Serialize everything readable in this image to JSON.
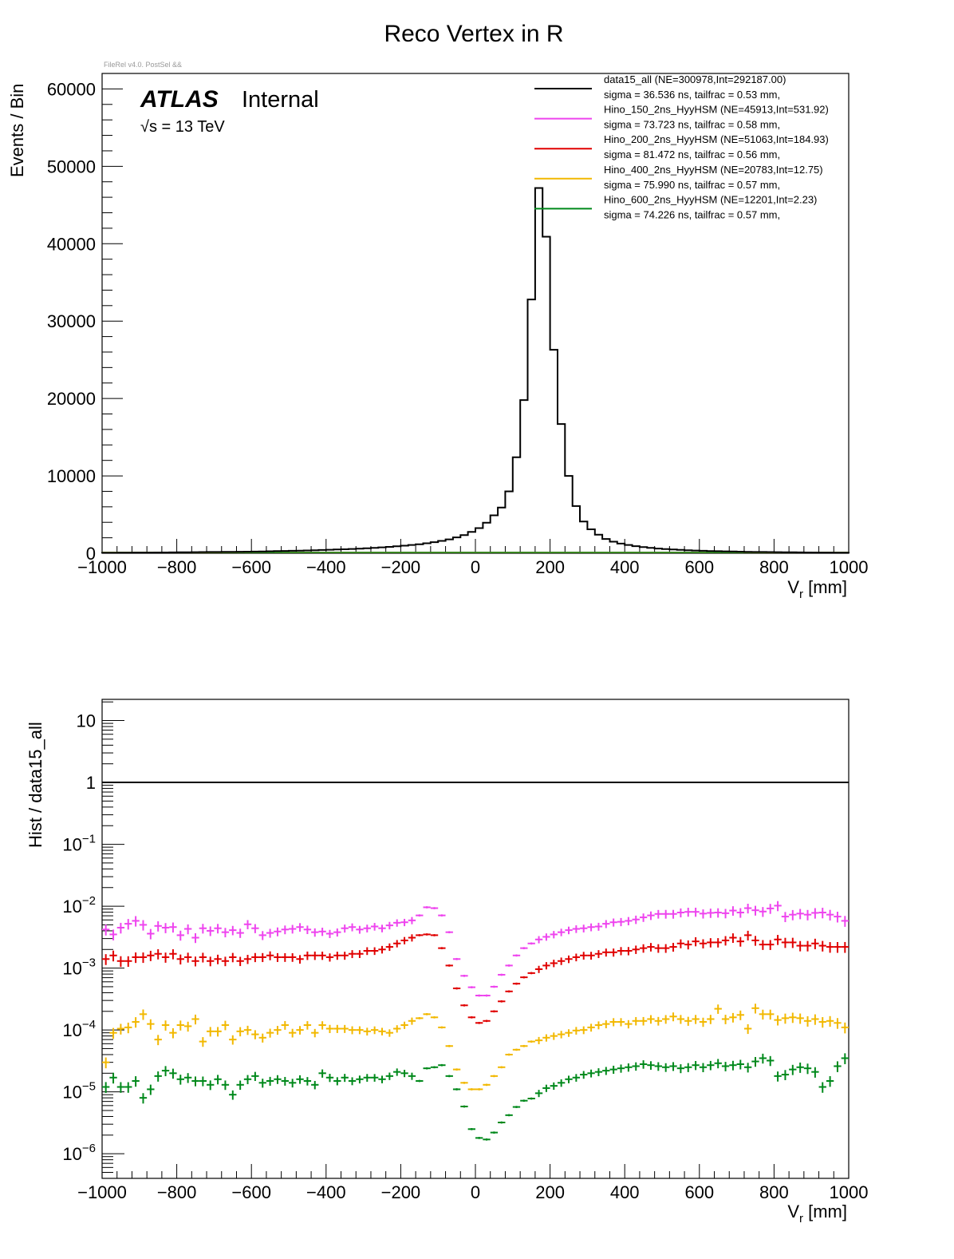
{
  "page": {
    "title": "Reco Vertex in R",
    "file_tag": "FileRel v4.0. PostSel &&",
    "atlas_label": "ATLAS",
    "atlas_status": "Internal",
    "energy_label": "√s = 13 TeV",
    "colors": {
      "data": "#000000",
      "h150": "#ee44ee",
      "h200": "#e00000",
      "h400": "#f2b800",
      "h600": "#00891b"
    }
  },
  "legend": [
    {
      "key": "data",
      "line1": "data15_all  (NE=300978,Int=292187.00)",
      "line2": "sigma = 36.536 ns, tailfrac = 0.53 mm,"
    },
    {
      "key": "h150",
      "line1": "Hino_150_2ns_HyyHSM  (NE=45913,Int=531.92)",
      "line2": "sigma = 73.723 ns, tailfrac = 0.58 mm,"
    },
    {
      "key": "h200",
      "line1": "Hino_200_2ns_HyyHSM  (NE=51063,Int=184.93)",
      "line2": "sigma = 81.472 ns, tailfrac = 0.56 mm,"
    },
    {
      "key": "h400",
      "line1": "Hino_400_2ns_HyyHSM  (NE=20783,Int=12.75)",
      "line2": "sigma = 75.990 ns, tailfrac = 0.57 mm,"
    },
    {
      "key": "h600",
      "line1": "Hino_600_2ns_HyyHSM  (NE=12201,Int=2.23)",
      "line2": "sigma = 74.226 ns, tailfrac = 0.57 mm,"
    }
  ],
  "chart_data": [
    {
      "type": "histogram",
      "title": "Reco Vertex in R",
      "xlabel": "V_r [mm]",
      "ylabel": "Events / Bin",
      "xlim": [
        -1000,
        1000
      ],
      "ylim": [
        0,
        62000
      ],
      "x_ticks": [
        -1000,
        -800,
        -600,
        -400,
        -200,
        0,
        200,
        400,
        600,
        800,
        1000
      ],
      "x_tick_labels": [
        "−1000",
        "−800",
        "−600",
        "−400",
        "−200",
        "0",
        "200",
        "400",
        "600",
        "800",
        "1000"
      ],
      "y_ticks": [
        0,
        10000,
        20000,
        30000,
        40000,
        50000,
        60000
      ],
      "y_tick_labels": [
        "0",
        "10000",
        "20000",
        "30000",
        "40000",
        "50000",
        "60000"
      ],
      "bin_width": 20,
      "series": [
        {
          "name": "data15_all",
          "values": [
            50,
            55,
            60,
            65,
            70,
            75,
            80,
            90,
            100,
            110,
            120,
            130,
            140,
            150,
            160,
            170,
            180,
            190,
            200,
            210,
            220,
            240,
            260,
            280,
            300,
            320,
            340,
            360,
            390,
            420,
            450,
            480,
            520,
            560,
            600,
            650,
            700,
            760,
            830,
            900,
            980,
            1070,
            1170,
            1290,
            1430,
            1600,
            1800,
            2050,
            2350,
            2750,
            3250,
            3950,
            4900,
            5900,
            8000,
            12400,
            19800,
            32800,
            47200,
            40900,
            26300,
            16700,
            10000,
            6100,
            4100,
            3100,
            2400,
            1850,
            1500,
            1250,
            1070,
            920,
            800,
            700,
            610,
            540,
            480,
            430,
            390,
            350,
            320,
            290,
            270,
            250,
            230,
            210,
            190,
            170,
            160,
            150,
            140,
            130,
            120,
            110,
            100,
            90,
            80,
            70,
            65,
            60
          ]
        },
        {
          "name": "Hino_150_2ns_HyyHSM",
          "total": 531.92
        },
        {
          "name": "Hino_200_2ns_HyyHSM",
          "total": 184.93
        },
        {
          "name": "Hino_400_2ns_HyyHSM",
          "total": 12.75
        },
        {
          "name": "Hino_600_2ns_HyyHSM",
          "total": 2.23
        }
      ]
    },
    {
      "type": "scatter",
      "xlabel": "V_r [mm]",
      "ylabel": "Hist / data15_all",
      "yscale": "log",
      "xlim": [
        -1000,
        1000
      ],
      "ylim": [
        4e-07,
        22
      ],
      "x_ticks": [
        -1000,
        -800,
        -600,
        -400,
        -200,
        0,
        200,
        400,
        600,
        800,
        1000
      ],
      "x_tick_labels": [
        "−1000",
        "−800",
        "−600",
        "−400",
        "−200",
        "0",
        "200",
        "400",
        "600",
        "800",
        "1000"
      ],
      "y_ticks": [
        {
          "value": 10,
          "base": "10",
          "exp": ""
        },
        {
          "value": 1,
          "base": "1",
          "exp": ""
        },
        {
          "value": 0.1,
          "base": "10",
          "exp": "−1"
        },
        {
          "value": 0.01,
          "base": "10",
          "exp": "−2"
        },
        {
          "value": 0.001,
          "base": "10",
          "exp": "−3"
        },
        {
          "value": 0.0001,
          "base": "10",
          "exp": "−4"
        },
        {
          "value": 1e-05,
          "base": "10",
          "exp": "−5"
        },
        {
          "value": 1e-06,
          "base": "10",
          "exp": "−6"
        }
      ],
      "reference_line": 1,
      "series": [
        {
          "name": "Hino_150_2ns_HyyHSM",
          "values": [
            0.0042,
            0.0035,
            0.0045,
            0.0052,
            0.0058,
            0.005,
            0.0036,
            0.0048,
            0.0045,
            0.0046,
            0.0034,
            0.0043,
            0.0031,
            0.0044,
            0.004,
            0.0044,
            0.0038,
            0.0041,
            0.0037,
            0.0051,
            0.0044,
            0.0034,
            0.0037,
            0.0039,
            0.0042,
            0.0043,
            0.0046,
            0.0042,
            0.0038,
            0.0039,
            0.0036,
            0.0038,
            0.0044,
            0.0046,
            0.0042,
            0.0044,
            0.0047,
            0.0044,
            0.0049,
            0.0054,
            0.0055,
            0.0059,
            0.0071,
            0.0096,
            0.0093,
            0.0071,
            0.0038,
            0.0014,
            0.00075,
            0.00049,
            0.00036,
            0.00036,
            0.0005,
            0.00078,
            0.0011,
            0.0016,
            0.0021,
            0.0025,
            0.0029,
            0.0032,
            0.0035,
            0.0038,
            0.0041,
            0.0043,
            0.0044,
            0.0046,
            0.0047,
            0.0052,
            0.0055,
            0.0056,
            0.0058,
            0.0061,
            0.0066,
            0.0071,
            0.0075,
            0.0075,
            0.0075,
            0.0079,
            0.0081,
            0.0081,
            0.0076,
            0.0078,
            0.0079,
            0.0077,
            0.0085,
            0.0079,
            0.0093,
            0.0086,
            0.0082,
            0.0092,
            0.0102,
            0.0068,
            0.0073,
            0.0076,
            0.0073,
            0.0078,
            0.0079,
            0.0073,
            0.0068,
            0.0058
          ]
        },
        {
          "name": "Hino_200_2ns_HyyHSM",
          "values": [
            0.0014,
            0.0016,
            0.0013,
            0.0013,
            0.0015,
            0.0015,
            0.0016,
            0.0017,
            0.0015,
            0.0017,
            0.0014,
            0.0015,
            0.0013,
            0.0015,
            0.0013,
            0.0014,
            0.0013,
            0.0015,
            0.0013,
            0.0014,
            0.0015,
            0.0015,
            0.0016,
            0.0015,
            0.0015,
            0.0015,
            0.0014,
            0.0016,
            0.0016,
            0.0016,
            0.0015,
            0.0016,
            0.0016,
            0.0017,
            0.0017,
            0.0019,
            0.0019,
            0.002,
            0.0022,
            0.0025,
            0.0028,
            0.0031,
            0.0034,
            0.0035,
            0.0034,
            0.0021,
            0.0011,
            0.00047,
            0.00025,
            0.00016,
            0.00013,
            0.00014,
            0.0002,
            0.00029,
            0.00042,
            0.00056,
            0.00071,
            0.00083,
            0.00096,
            0.0011,
            0.0012,
            0.0013,
            0.0014,
            0.0015,
            0.0016,
            0.0016,
            0.0017,
            0.0018,
            0.0018,
            0.0019,
            0.0019,
            0.002,
            0.0021,
            0.0022,
            0.0021,
            0.0021,
            0.0022,
            0.0025,
            0.0024,
            0.0027,
            0.0025,
            0.0026,
            0.0026,
            0.0028,
            0.0031,
            0.0027,
            0.0034,
            0.0028,
            0.0024,
            0.0024,
            0.0029,
            0.0026,
            0.0026,
            0.0023,
            0.0023,
            0.0025,
            0.0023,
            0.0022,
            0.0022,
            0.0022
          ]
        },
        {
          "name": "Hino_400_2ns_HyyHSM",
          "values": [
            3e-05,
            9e-05,
            0.000105,
            0.00011,
            0.000135,
            0.00018,
            0.000125,
            7e-05,
            0.00012,
            9e-05,
            0.00012,
            0.000115,
            0.00015,
            6.5e-05,
            9.5e-05,
            9.5e-05,
            0.00012,
            7e-05,
            9.5e-05,
            0.0001,
            8.5e-05,
            7.5e-05,
            9e-05,
            0.0001,
            0.00012,
            9e-05,
            0.0001,
            0.00012,
            9e-05,
            0.00012,
            0.000105,
            0.000105,
            0.000105,
            0.0001,
            0.0001,
            9.5e-05,
            0.0001,
            9.5e-05,
            9e-05,
            0.000105,
            0.00012,
            0.00014,
            0.000155,
            0.00018,
            0.00016,
            0.00011,
            5.5e-05,
            2.3e-05,
            1.4e-05,
            1.1e-05,
            1.1e-05,
            1.3e-05,
            1.8e-05,
            2.5e-05,
            4e-05,
            4.8e-05,
            5.5e-05,
            6.5e-05,
            6.8e-05,
            7.5e-05,
            8e-05,
            8.5e-05,
            9e-05,
            9.8e-05,
            0.0001,
            0.00011,
            0.00012,
            0.000125,
            0.000135,
            0.000135,
            0.000125,
            0.00014,
            0.00014,
            0.00015,
            0.00014,
            0.00015,
            0.000165,
            0.00015,
            0.00014,
            0.00015,
            0.000135,
            0.00015,
            0.00022,
            0.00015,
            0.00016,
            0.000175,
            0.000105,
            0.000225,
            0.00018,
            0.00018,
            0.000145,
            0.000155,
            0.00016,
            0.000155,
            0.00014,
            0.00015,
            0.000135,
            0.00014,
            0.00013,
            0.00011
          ]
        },
        {
          "name": "Hino_600_2ns_HyyHSM",
          "values": [
            1.2e-05,
            1.7e-05,
            1.2e-05,
            1.2e-05,
            1.5e-05,
            8e-06,
            1.1e-05,
            1.8e-05,
            2.2e-05,
            2e-05,
            1.6e-05,
            1.7e-05,
            1.5e-05,
            1.5e-05,
            1.3e-05,
            1.6e-05,
            1.3e-05,
            9e-06,
            1.3e-05,
            1.6e-05,
            1.8e-05,
            1.4e-05,
            1.5e-05,
            1.6e-05,
            1.5e-05,
            1.4e-05,
            1.6e-05,
            1.5e-05,
            1.3e-05,
            2e-05,
            1.7e-05,
            1.5e-05,
            1.7e-05,
            1.5e-05,
            1.6e-05,
            1.7e-05,
            1.7e-05,
            1.6e-05,
            1.8e-05,
            2.1e-05,
            2e-05,
            1.8e-05,
            1.5e-05,
            2.4e-05,
            2.5e-05,
            2.7e-05,
            1.8e-05,
            1.1e-05,
            5.8e-06,
            2.5e-06,
            1.8e-06,
            1.7e-06,
            2.2e-06,
            3.2e-06,
            4.2e-06,
            5.7e-06,
            7.2e-06,
            7.8e-06,
            9.5e-06,
            1.15e-05,
            1.25e-05,
            1.4e-05,
            1.6e-05,
            1.7e-05,
            1.9e-05,
            2e-05,
            2.1e-05,
            2.2e-05,
            2.3e-05,
            2.4e-05,
            2.5e-05,
            2.6e-05,
            2.8e-05,
            2.7e-05,
            2.6e-05,
            2.5e-05,
            2.6e-05,
            2.4e-05,
            2.5e-05,
            2.7e-05,
            2.5e-05,
            2.7e-05,
            2.9e-05,
            2.6e-05,
            2.7e-05,
            2.8e-05,
            2.5e-05,
            3.1e-05,
            3.5e-05,
            3.2e-05,
            1.8e-05,
            1.9e-05,
            2.3e-05,
            2.5e-05,
            2.4e-05,
            2.1e-05,
            1.2e-05,
            1.5e-05,
            2.6e-05,
            3.5e-05
          ]
        }
      ]
    }
  ]
}
